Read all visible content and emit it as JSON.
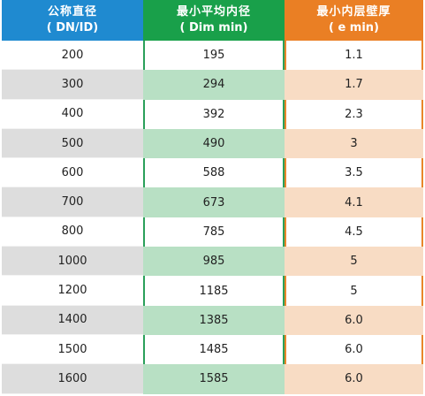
{
  "headers": {
    "dn": {
      "line1": "公称直径",
      "line2": "( DN/ID)"
    },
    "dim": {
      "line1": "最小平均内径",
      "line2": "( Dim min)"
    },
    "e": {
      "line1": "最小内层壁厚",
      "line2": "( e min)"
    }
  },
  "colors": {
    "dn_header": "#1f8ad0",
    "dim_header": "#19a04a",
    "e_header": "#ea7f24",
    "dn_shade": "#dddddd",
    "dim_shade": "#b8e0c4",
    "e_shade": "#f8dcc4"
  },
  "rows": [
    {
      "dn": "200",
      "dim": "195",
      "e": "1.1"
    },
    {
      "dn": "300",
      "dim": "294",
      "e": "1.7"
    },
    {
      "dn": "400",
      "dim": "392",
      "e": "2.3"
    },
    {
      "dn": "500",
      "dim": "490",
      "e": "3"
    },
    {
      "dn": "600",
      "dim": "588",
      "e": "3.5"
    },
    {
      "dn": "700",
      "dim": "673",
      "e": "4.1"
    },
    {
      "dn": "800",
      "dim": "785",
      "e": "4.5"
    },
    {
      "dn": "1000",
      "dim": "985",
      "e": "5"
    },
    {
      "dn": "1200",
      "dim": "1185",
      "e": "5"
    },
    {
      "dn": "1400",
      "dim": "1385",
      "e": "6.0"
    },
    {
      "dn": "1500",
      "dim": "1485",
      "e": "6.0"
    },
    {
      "dn": "1600",
      "dim": "1585",
      "e": "6.0"
    }
  ]
}
